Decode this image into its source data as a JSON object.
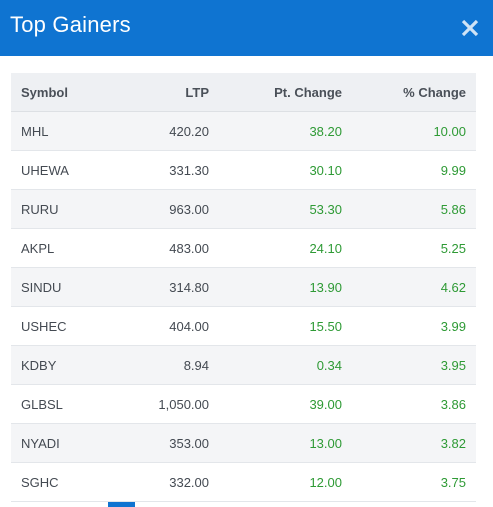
{
  "header": {
    "title": "Top Gainers"
  },
  "columns": {
    "symbol": "Symbol",
    "ltp": "LTP",
    "pt_change": "Pt. Change",
    "pct_change": "% Change"
  },
  "rows": [
    {
      "symbol": "MHL",
      "ltp": "420.20",
      "pt_change": "38.20",
      "pct_change": "10.00"
    },
    {
      "symbol": "UHEWA",
      "ltp": "331.30",
      "pt_change": "30.10",
      "pct_change": "9.99"
    },
    {
      "symbol": "RURU",
      "ltp": "963.00",
      "pt_change": "53.30",
      "pct_change": "5.86"
    },
    {
      "symbol": "AKPL",
      "ltp": "483.00",
      "pt_change": "24.10",
      "pct_change": "5.25"
    },
    {
      "symbol": "SINDU",
      "ltp": "314.80",
      "pt_change": "13.90",
      "pct_change": "4.62"
    },
    {
      "symbol": "USHEC",
      "ltp": "404.00",
      "pt_change": "15.50",
      "pct_change": "3.99"
    },
    {
      "symbol": "KDBY",
      "ltp": "8.94",
      "pt_change": "0.34",
      "pct_change": "3.95"
    },
    {
      "symbol": "GLBSL",
      "ltp": "1,050.00",
      "pt_change": "39.00",
      "pct_change": "3.86"
    },
    {
      "symbol": "NYADI",
      "ltp": "353.00",
      "pt_change": "13.00",
      "pct_change": "3.82"
    },
    {
      "symbol": "SGHC",
      "ltp": "332.00",
      "pt_change": "12.00",
      "pct_change": "3.75"
    }
  ],
  "colors": {
    "header": "#0f74d1",
    "positive": "#2e9a35"
  },
  "icons": {
    "close": "close-icon"
  }
}
